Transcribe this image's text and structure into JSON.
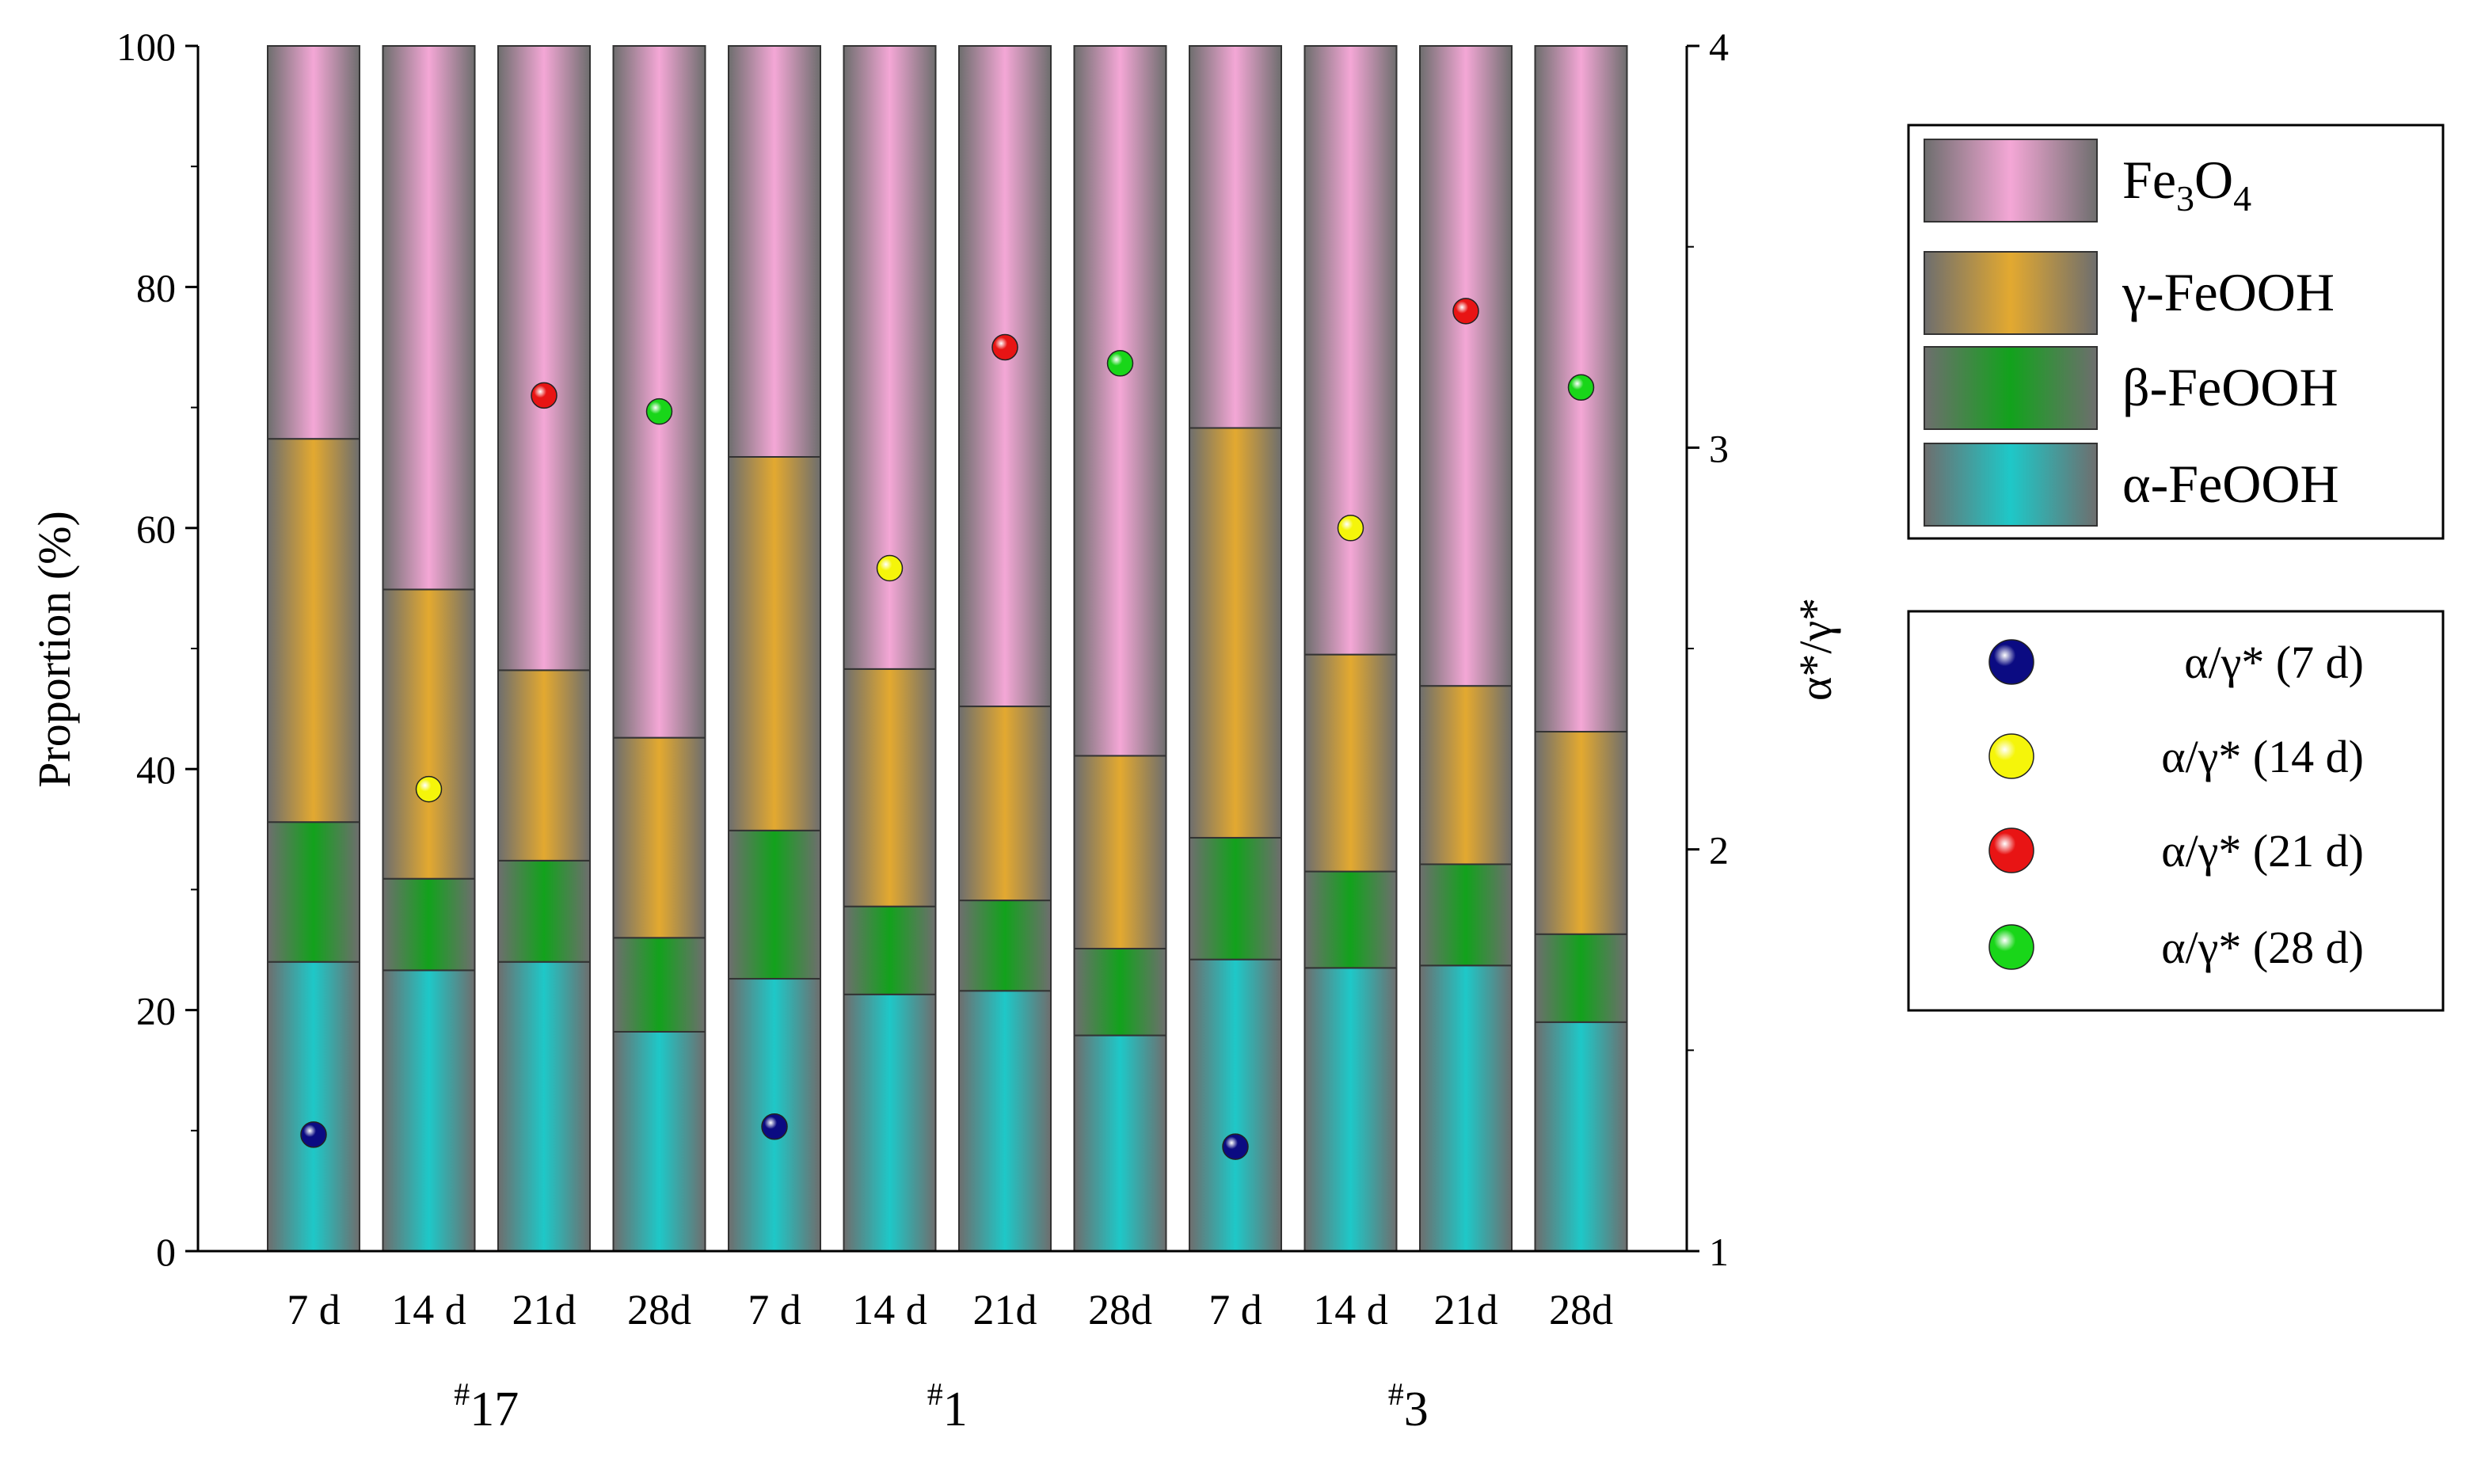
{
  "chart_data": {
    "type": "bar",
    "stacked": true,
    "ylabel": "Proportion (%)",
    "ylim": [
      0,
      100
    ],
    "yticks": [
      0,
      20,
      40,
      60,
      80,
      100
    ],
    "y2label": "α*/γ*",
    "y2lim": [
      1,
      4
    ],
    "y2ticks": [
      1,
      2,
      3,
      4
    ],
    "categories": [
      "7 d",
      "14 d",
      "21d",
      "28d",
      "7 d",
      "14 d",
      "21d",
      "28d",
      "7 d",
      "14 d",
      "21d",
      "28d"
    ],
    "groups": [
      {
        "prefix": "#",
        "label": "17",
        "start": 0,
        "end": 3
      },
      {
        "prefix": "#",
        "label": "1",
        "start": 4,
        "end": 7
      },
      {
        "prefix": "#",
        "label": "3",
        "start": 8,
        "end": 11
      }
    ],
    "series": [
      {
        "name_base": "α-FeOOH",
        "color": "#1ec8c8",
        "values": [
          24.0,
          23.3,
          24.0,
          18.2,
          22.6,
          21.3,
          21.6,
          17.9,
          24.2,
          23.5,
          23.7,
          19.0
        ]
      },
      {
        "name_base": "β-FeOOH",
        "color": "#12a21c",
        "values": [
          11.6,
          7.6,
          8.4,
          7.8,
          12.3,
          7.3,
          7.5,
          7.2,
          10.1,
          8.0,
          8.4,
          7.3
        ]
      },
      {
        "name_base": "γ-FeOOH",
        "color": "#e3a930",
        "values": [
          31.8,
          24.0,
          15.8,
          16.6,
          31.0,
          19.7,
          16.1,
          16.0,
          34.0,
          18.0,
          14.8,
          16.8
        ]
      },
      {
        "name_base": "Fe",
        "name_sub1": "3",
        "name_mid": "O",
        "name_sub2": "4",
        "color": "#f4a7d6",
        "values": [
          32.6,
          45.1,
          51.8,
          57.4,
          34.1,
          51.7,
          54.8,
          58.9,
          31.7,
          50.5,
          53.1,
          56.9
        ]
      }
    ],
    "ratio_points": [
      {
        "label": "α/γ*  (7 d)",
        "color": "#0b0b82",
        "points": [
          {
            "index": 0,
            "value": 1.29
          },
          {
            "index": 4,
            "value": 1.31
          },
          {
            "index": 8,
            "value": 1.26
          }
        ]
      },
      {
        "label": "α/γ*  (14 d)",
        "color": "#f5f50a",
        "points": [
          {
            "index": 1,
            "value": 2.15
          },
          {
            "index": 5,
            "value": 2.7
          },
          {
            "index": 9,
            "value": 2.8
          }
        ]
      },
      {
        "label": "α/γ*  (21 d)",
        "color": "#e81414",
        "points": [
          {
            "index": 2,
            "value": 3.13
          },
          {
            "index": 6,
            "value": 3.25
          },
          {
            "index": 10,
            "value": 3.34
          }
        ]
      },
      {
        "label": "α/γ*  (28 d)",
        "color": "#19d619",
        "points": [
          {
            "index": 3,
            "value": 3.09
          },
          {
            "index": 7,
            "value": 3.21
          },
          {
            "index": 11,
            "value": 3.15
          }
        ]
      }
    ]
  }
}
